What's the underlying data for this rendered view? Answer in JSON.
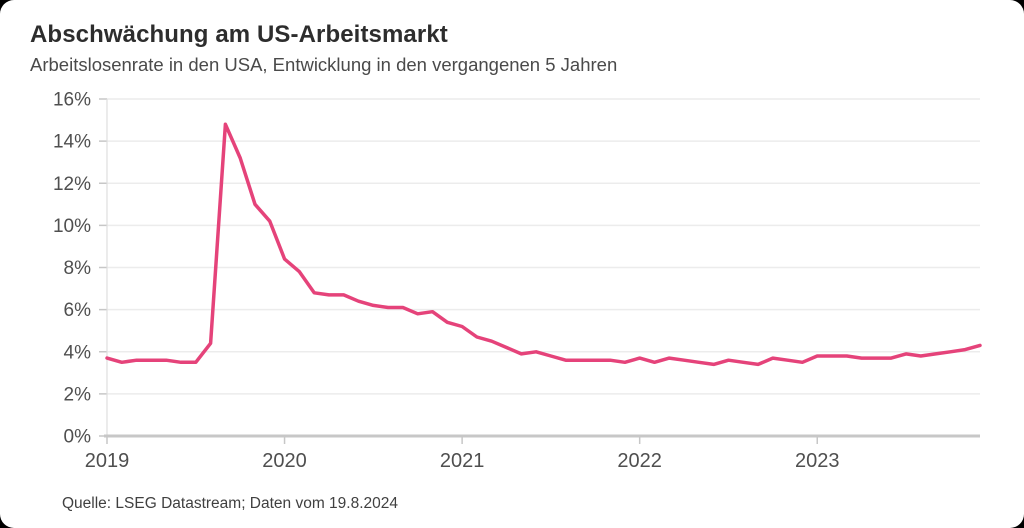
{
  "chart_data": {
    "type": "line",
    "title": "Abschwächung am US-Arbeitsmarkt",
    "subtitle": "Arbeitslosenrate in den USA, Entwicklung in den vergangenen 5 Jahren",
    "source": "Quelle: LSEG Datastream; Daten vom 19.8.2024",
    "unit": "%",
    "ylim": [
      0,
      16
    ],
    "grid": "horizontal",
    "legend": "none",
    "y_ticks": [
      0,
      2,
      4,
      6,
      8,
      10,
      12,
      14,
      16
    ],
    "y_tick_labels": [
      "0%",
      "2%",
      "4%",
      "6%",
      "8%",
      "10%",
      "12%",
      "14%",
      "16%"
    ],
    "x_ticks": [
      {
        "label": "2019",
        "month_index": 0
      },
      {
        "label": "2020",
        "month_index": 12
      },
      {
        "label": "2021",
        "month_index": 24
      },
      {
        "label": "2022",
        "month_index": 36
      },
      {
        "label": "2023",
        "month_index": 48
      }
    ],
    "series": [
      {
        "name": "Arbeitslosenrate USA",
        "color": "#e5437a",
        "frequency": "monthly",
        "start_month": "2019-08",
        "end_month": "2024-07",
        "values": [
          3.7,
          3.5,
          3.6,
          3.6,
          3.6,
          3.5,
          3.5,
          4.4,
          14.8,
          13.2,
          11.0,
          10.2,
          8.4,
          7.8,
          6.8,
          6.7,
          6.7,
          6.4,
          6.2,
          6.1,
          6.1,
          5.8,
          5.9,
          5.4,
          5.2,
          4.7,
          4.5,
          4.2,
          3.9,
          4.0,
          3.8,
          3.6,
          3.6,
          3.6,
          3.6,
          3.5,
          3.7,
          3.5,
          3.7,
          3.6,
          3.5,
          3.4,
          3.6,
          3.5,
          3.4,
          3.7,
          3.6,
          3.5,
          3.8,
          3.8,
          3.8,
          3.7,
          3.7,
          3.7,
          3.9,
          3.8,
          3.9,
          4.0,
          4.1,
          4.3
        ]
      }
    ]
  }
}
